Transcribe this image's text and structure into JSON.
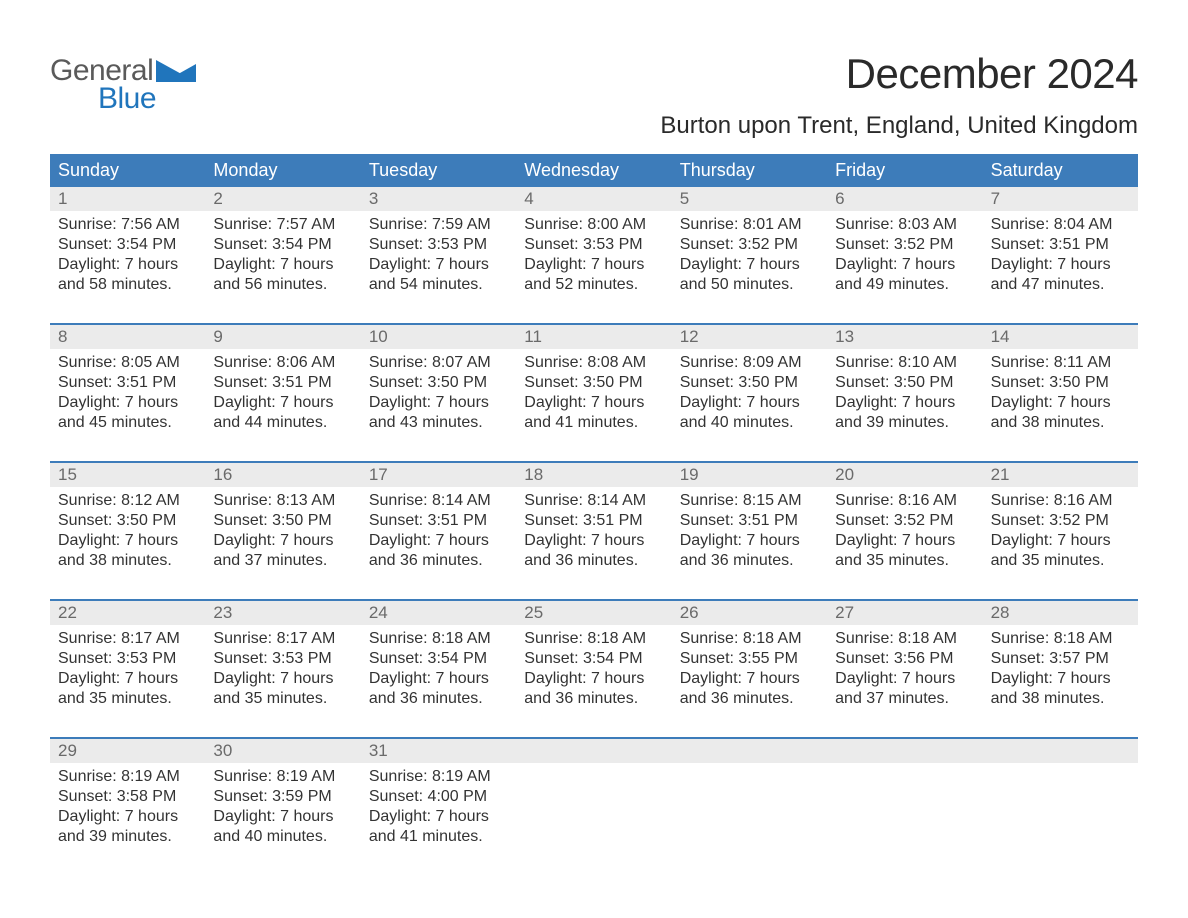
{
  "logo": {
    "line1": "General",
    "line2": "Blue",
    "shape_color": "#2075bc"
  },
  "title": "December 2024",
  "location": "Burton upon Trent, England, United Kingdom",
  "colors": {
    "header_bg": "#3d7cba",
    "header_text": "#ffffff",
    "daynum_bg": "#ebebeb",
    "daynum_text": "#6a6a6a",
    "row_border": "#3d7cba",
    "body_text": "#333333",
    "background": "#ffffff"
  },
  "typography": {
    "title_fontsize": 42,
    "location_fontsize": 24,
    "weekday_fontsize": 18,
    "daynum_fontsize": 17,
    "cell_fontsize": 16
  },
  "layout": {
    "columns": 7,
    "rows": 5,
    "cell_padding_bottom": 28
  },
  "weekdays": [
    "Sunday",
    "Monday",
    "Tuesday",
    "Wednesday",
    "Thursday",
    "Friday",
    "Saturday"
  ],
  "weeks": [
    [
      {
        "day": "1",
        "sunrise": "Sunrise: 7:56 AM",
        "sunset": "Sunset: 3:54 PM",
        "daylight1": "Daylight: 7 hours",
        "daylight2": "and 58 minutes."
      },
      {
        "day": "2",
        "sunrise": "Sunrise: 7:57 AM",
        "sunset": "Sunset: 3:54 PM",
        "daylight1": "Daylight: 7 hours",
        "daylight2": "and 56 minutes."
      },
      {
        "day": "3",
        "sunrise": "Sunrise: 7:59 AM",
        "sunset": "Sunset: 3:53 PM",
        "daylight1": "Daylight: 7 hours",
        "daylight2": "and 54 minutes."
      },
      {
        "day": "4",
        "sunrise": "Sunrise: 8:00 AM",
        "sunset": "Sunset: 3:53 PM",
        "daylight1": "Daylight: 7 hours",
        "daylight2": "and 52 minutes."
      },
      {
        "day": "5",
        "sunrise": "Sunrise: 8:01 AM",
        "sunset": "Sunset: 3:52 PM",
        "daylight1": "Daylight: 7 hours",
        "daylight2": "and 50 minutes."
      },
      {
        "day": "6",
        "sunrise": "Sunrise: 8:03 AM",
        "sunset": "Sunset: 3:52 PM",
        "daylight1": "Daylight: 7 hours",
        "daylight2": "and 49 minutes."
      },
      {
        "day": "7",
        "sunrise": "Sunrise: 8:04 AM",
        "sunset": "Sunset: 3:51 PM",
        "daylight1": "Daylight: 7 hours",
        "daylight2": "and 47 minutes."
      }
    ],
    [
      {
        "day": "8",
        "sunrise": "Sunrise: 8:05 AM",
        "sunset": "Sunset: 3:51 PM",
        "daylight1": "Daylight: 7 hours",
        "daylight2": "and 45 minutes."
      },
      {
        "day": "9",
        "sunrise": "Sunrise: 8:06 AM",
        "sunset": "Sunset: 3:51 PM",
        "daylight1": "Daylight: 7 hours",
        "daylight2": "and 44 minutes."
      },
      {
        "day": "10",
        "sunrise": "Sunrise: 8:07 AM",
        "sunset": "Sunset: 3:50 PM",
        "daylight1": "Daylight: 7 hours",
        "daylight2": "and 43 minutes."
      },
      {
        "day": "11",
        "sunrise": "Sunrise: 8:08 AM",
        "sunset": "Sunset: 3:50 PM",
        "daylight1": "Daylight: 7 hours",
        "daylight2": "and 41 minutes."
      },
      {
        "day": "12",
        "sunrise": "Sunrise: 8:09 AM",
        "sunset": "Sunset: 3:50 PM",
        "daylight1": "Daylight: 7 hours",
        "daylight2": "and 40 minutes."
      },
      {
        "day": "13",
        "sunrise": "Sunrise: 8:10 AM",
        "sunset": "Sunset: 3:50 PM",
        "daylight1": "Daylight: 7 hours",
        "daylight2": "and 39 minutes."
      },
      {
        "day": "14",
        "sunrise": "Sunrise: 8:11 AM",
        "sunset": "Sunset: 3:50 PM",
        "daylight1": "Daylight: 7 hours",
        "daylight2": "and 38 minutes."
      }
    ],
    [
      {
        "day": "15",
        "sunrise": "Sunrise: 8:12 AM",
        "sunset": "Sunset: 3:50 PM",
        "daylight1": "Daylight: 7 hours",
        "daylight2": "and 38 minutes."
      },
      {
        "day": "16",
        "sunrise": "Sunrise: 8:13 AM",
        "sunset": "Sunset: 3:50 PM",
        "daylight1": "Daylight: 7 hours",
        "daylight2": "and 37 minutes."
      },
      {
        "day": "17",
        "sunrise": "Sunrise: 8:14 AM",
        "sunset": "Sunset: 3:51 PM",
        "daylight1": "Daylight: 7 hours",
        "daylight2": "and 36 minutes."
      },
      {
        "day": "18",
        "sunrise": "Sunrise: 8:14 AM",
        "sunset": "Sunset: 3:51 PM",
        "daylight1": "Daylight: 7 hours",
        "daylight2": "and 36 minutes."
      },
      {
        "day": "19",
        "sunrise": "Sunrise: 8:15 AM",
        "sunset": "Sunset: 3:51 PM",
        "daylight1": "Daylight: 7 hours",
        "daylight2": "and 36 minutes."
      },
      {
        "day": "20",
        "sunrise": "Sunrise: 8:16 AM",
        "sunset": "Sunset: 3:52 PM",
        "daylight1": "Daylight: 7 hours",
        "daylight2": "and 35 minutes."
      },
      {
        "day": "21",
        "sunrise": "Sunrise: 8:16 AM",
        "sunset": "Sunset: 3:52 PM",
        "daylight1": "Daylight: 7 hours",
        "daylight2": "and 35 minutes."
      }
    ],
    [
      {
        "day": "22",
        "sunrise": "Sunrise: 8:17 AM",
        "sunset": "Sunset: 3:53 PM",
        "daylight1": "Daylight: 7 hours",
        "daylight2": "and 35 minutes."
      },
      {
        "day": "23",
        "sunrise": "Sunrise: 8:17 AM",
        "sunset": "Sunset: 3:53 PM",
        "daylight1": "Daylight: 7 hours",
        "daylight2": "and 35 minutes."
      },
      {
        "day": "24",
        "sunrise": "Sunrise: 8:18 AM",
        "sunset": "Sunset: 3:54 PM",
        "daylight1": "Daylight: 7 hours",
        "daylight2": "and 36 minutes."
      },
      {
        "day": "25",
        "sunrise": "Sunrise: 8:18 AM",
        "sunset": "Sunset: 3:54 PM",
        "daylight1": "Daylight: 7 hours",
        "daylight2": "and 36 minutes."
      },
      {
        "day": "26",
        "sunrise": "Sunrise: 8:18 AM",
        "sunset": "Sunset: 3:55 PM",
        "daylight1": "Daylight: 7 hours",
        "daylight2": "and 36 minutes."
      },
      {
        "day": "27",
        "sunrise": "Sunrise: 8:18 AM",
        "sunset": "Sunset: 3:56 PM",
        "daylight1": "Daylight: 7 hours",
        "daylight2": "and 37 minutes."
      },
      {
        "day": "28",
        "sunrise": "Sunrise: 8:18 AM",
        "sunset": "Sunset: 3:57 PM",
        "daylight1": "Daylight: 7 hours",
        "daylight2": "and 38 minutes."
      }
    ],
    [
      {
        "day": "29",
        "sunrise": "Sunrise: 8:19 AM",
        "sunset": "Sunset: 3:58 PM",
        "daylight1": "Daylight: 7 hours",
        "daylight2": "and 39 minutes."
      },
      {
        "day": "30",
        "sunrise": "Sunrise: 8:19 AM",
        "sunset": "Sunset: 3:59 PM",
        "daylight1": "Daylight: 7 hours",
        "daylight2": "and 40 minutes."
      },
      {
        "day": "31",
        "sunrise": "Sunrise: 8:19 AM",
        "sunset": "Sunset: 4:00 PM",
        "daylight1": "Daylight: 7 hours",
        "daylight2": "and 41 minutes."
      },
      null,
      null,
      null,
      null
    ]
  ]
}
